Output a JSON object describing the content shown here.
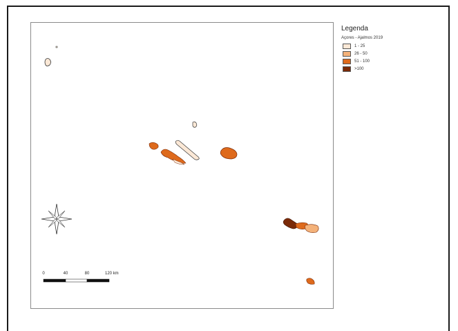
{
  "legend": {
    "title": "Legenda",
    "layer": "Açores - Ajalmos 2019",
    "items": [
      {
        "label": "1 - 25",
        "color": "#fbe8d6"
      },
      {
        "label": "26 - 50",
        "color": "#f4b27a"
      },
      {
        "label": "51 - 100",
        "color": "#de6a1c"
      },
      {
        "label": ">100",
        "color": "#7a2a08"
      }
    ]
  },
  "scalebar": {
    "ticks": [
      "0",
      "40",
      "80",
      "120 km"
    ]
  },
  "compass": {
    "icon": "north-arrow-icon"
  }
}
